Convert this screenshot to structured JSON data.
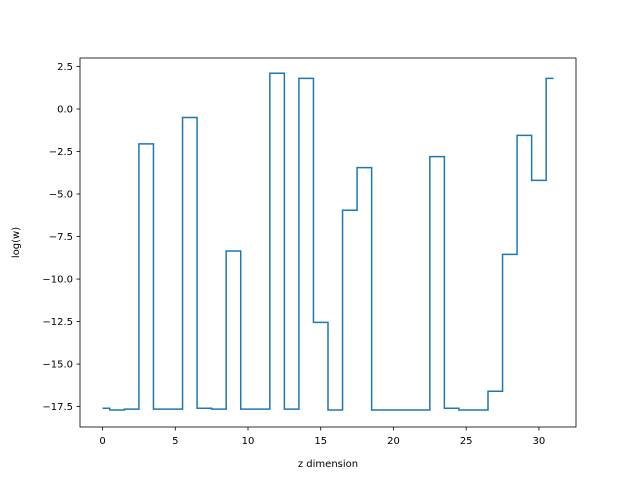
{
  "chart_data": {
    "type": "line",
    "drawstyle": "steps-mid",
    "xlabel": "z dimension",
    "ylabel": "log(w)",
    "xlim": [
      -1.55,
      32.55
    ],
    "ylim": [
      -18.7,
      3.0
    ],
    "xticks": [
      0,
      5,
      10,
      15,
      20,
      25,
      30
    ],
    "xtick_labels": [
      "0",
      "5",
      "10",
      "15",
      "20",
      "25",
      "30"
    ],
    "yticks": [
      2.5,
      0.0,
      -2.5,
      -5.0,
      -7.5,
      -10.0,
      -12.5,
      -15.0,
      -17.5
    ],
    "ytick_labels": [
      "2.5",
      "0.0",
      "−2.5",
      "−5.0",
      "−7.5",
      "−10.0",
      "−12.5",
      "−15.0",
      "−17.5"
    ],
    "grid": false,
    "legend": "none",
    "series": [
      {
        "color": "#1f77b4",
        "x": [
          0,
          1,
          2,
          3,
          4,
          5,
          6,
          7,
          8,
          9,
          10,
          11,
          12,
          13,
          14,
          15,
          16,
          17,
          18,
          19,
          20,
          21,
          22,
          23,
          24,
          25,
          26,
          27,
          28,
          29,
          30,
          31
        ],
        "y": [
          -17.6,
          -17.7,
          -17.65,
          -2.05,
          -17.65,
          -17.65,
          -0.5,
          -17.6,
          -17.65,
          -8.35,
          -17.65,
          -17.65,
          2.1,
          -17.65,
          1.8,
          -12.55,
          -17.7,
          -5.95,
          -3.45,
          -17.7,
          -17.7,
          -17.7,
          -17.7,
          -2.8,
          -17.6,
          -17.7,
          -17.7,
          -16.6,
          -8.55,
          -1.55,
          -4.2,
          1.8
        ]
      }
    ]
  }
}
